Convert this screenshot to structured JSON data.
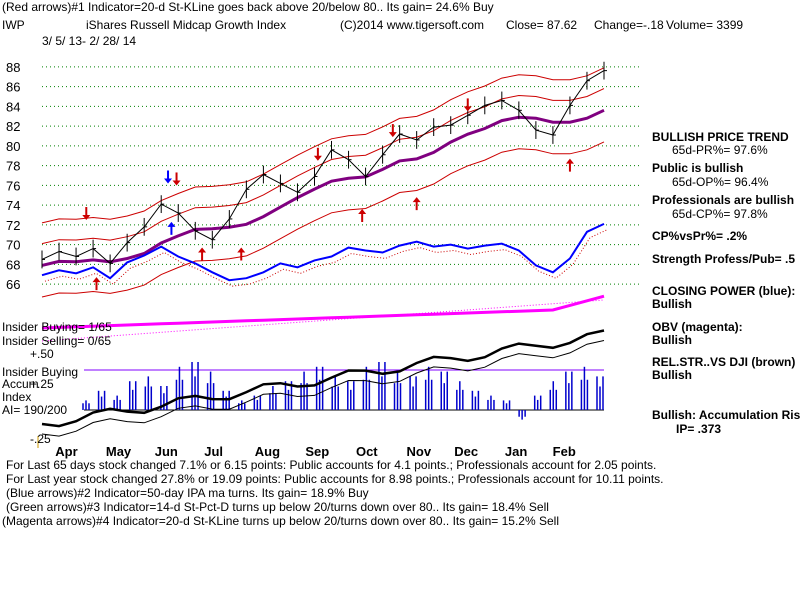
{
  "header": {
    "line1": "(Red arrows)#1 Indicator=20-d St-KLine goes back above 20/below 80.. Its gain= 24.6% Buy",
    "ticker": "IWP",
    "name": "iShares Russell Midcap Growth Index",
    "copyright": "(C)2014 www.tigersoft.com",
    "close": "Close=  87.62",
    "change": "Change=-.18",
    "volume": "Volume= 3399",
    "daterange": "3/ 5/ 13-  2/ 28/ 14"
  },
  "side_panel": {
    "trend_title": "BULLISH PRICE TREND",
    "pr": "65d-PR%= 97.6%",
    "public_title": "Public is bullish",
    "op": "65d-OP%= 96.4%",
    "prof_title": "Professionals are bullish",
    "cp": "65d-CP%= 97.8%",
    "cpvspr": "CP%vsPr%=  .2%",
    "strength": "Strength Profess/Pub= .5",
    "closing_power_title": "CLOSING POWER (blue):",
    "closing_power_value": "Bullish",
    "obv_title": "OBV (magenta):",
    "obv_value": "Bullish",
    "relstr_title": "REL.STR..VS DJI (brown)",
    "relstr_value": "Bullish",
    "accum_title": "Bullish: Accumulation Risi",
    "ip": "IP=  .373"
  },
  "insider": {
    "buying": "Insider Buying= 1/65",
    "selling": "Insider Selling= 0/65",
    "accum_label_1": "Insider Buying",
    "accum_label_2": "Accum",
    "accum_label_3": "Index",
    "ai": "AI= 190/200",
    "p50": "+.50",
    "p25": "+.25",
    "m25": "-.25"
  },
  "footer": {
    "line1": "For Last 65 days stock changed  7.1% or  6.15 points:  Public accounts for  4.1 points.;  Professionals account for  2.05 points.",
    "line2": "For Last year stock changed  27.8% or  19.09 points:  Public accounts for  8.98 points.;  Professionals account for  10.11 points.",
    "line3": "(Blue arrows)#2 Indicator=50-day IPA ma turns. Its gain= 18.9% Buy",
    "line4": "(Green arrows)#3 Indicator=14-d St-Pct-D turns up below 20/turns down over 80.. Its gain= 18.4% Sell",
    "line5": "(Magenta arrows)#4 Indicator=20-d St-KLine turns up below 20/turns down over 80.. Its gain= 15.2% Sell"
  },
  "chart_data": {
    "type": "line",
    "title": "iShares Russell Midcap Growth Index",
    "y_ticks": [
      66,
      68,
      70,
      72,
      74,
      76,
      78,
      80,
      82,
      84,
      86,
      88
    ],
    "ylim": [
      65,
      89
    ],
    "x_ticks": [
      "Apr",
      "May",
      "Jun",
      "Jul",
      "Aug",
      "Sep",
      "Oct",
      "Nov",
      "Dec",
      "Jan",
      "Feb"
    ],
    "x_tick_index": [
      1,
      2,
      3,
      4,
      5,
      6,
      7,
      8,
      9,
      10,
      11
    ],
    "grid": true,
    "series": [
      {
        "name": "Price",
        "color": "#000000",
        "values": [
          68.5,
          69.3,
          68.8,
          69.6,
          68.1,
          70.2,
          71.8,
          74.1,
          73.2,
          71.4,
          70.5,
          72.6,
          75.6,
          77.1,
          76.2,
          75.3,
          76.9,
          79.6,
          78.6,
          76.9,
          79.1,
          81.2,
          80.6,
          81.9,
          82.1,
          83.1,
          84.1,
          84.6,
          83.6,
          81.6,
          81.1,
          84.1,
          86.6,
          87.62
        ]
      },
      {
        "name": "Closing Power",
        "color": "#0000ff",
        "values": [
          66.9,
          67.4,
          67.1,
          67.7,
          66.6,
          68.2,
          68.9,
          69.8,
          68.8,
          68.1,
          67.2,
          66.4,
          66.6,
          67.2,
          68.1,
          67.7,
          68.4,
          68.8,
          69.7,
          69.4,
          69.2,
          69.9,
          70.3,
          69.8,
          70.0,
          69.6,
          69.9,
          70.1,
          69.4,
          67.9,
          67.2,
          68.6,
          71.3,
          72.1
        ]
      }
    ]
  },
  "colors": {
    "price": "#000000",
    "bands": "#cc0000",
    "ma": "#800080",
    "closing_power": "#0000ff",
    "obv": "#ff00ff",
    "rel_str": "#000000",
    "accum": "#0000cc",
    "arrow_red": "#cc0000",
    "arrow_blue": "#0000ff",
    "grid": "#008000"
  },
  "arrows": [
    {
      "color": "red",
      "dir": "down",
      "i": 2.6,
      "v": 73.2
    },
    {
      "color": "red",
      "dir": "up",
      "i": 3.2,
      "v": 66.0
    },
    {
      "color": "blue",
      "dir": "down",
      "i": 7.4,
      "v": 76.9
    },
    {
      "color": "red",
      "dir": "down",
      "i": 7.9,
      "v": 76.7
    },
    {
      "color": "blue",
      "dir": "up",
      "i": 7.6,
      "v": 71.6
    },
    {
      "color": "red",
      "dir": "up",
      "i": 9.4,
      "v": 69.0
    },
    {
      "color": "red",
      "dir": "up",
      "i": 11.7,
      "v": 69.0
    },
    {
      "color": "red",
      "dir": "down",
      "i": 16.2,
      "v": 79.2
    },
    {
      "color": "red",
      "dir": "up",
      "i": 18.8,
      "v": 72.9
    },
    {
      "color": "red",
      "dir": "down",
      "i": 20.6,
      "v": 81.6
    },
    {
      "color": "red",
      "dir": "up",
      "i": 22.0,
      "v": 74.1
    },
    {
      "color": "red",
      "dir": "down",
      "i": 25.0,
      "v": 84.2
    },
    {
      "color": "red",
      "dir": "up",
      "i": 31.0,
      "v": 78.0
    }
  ]
}
